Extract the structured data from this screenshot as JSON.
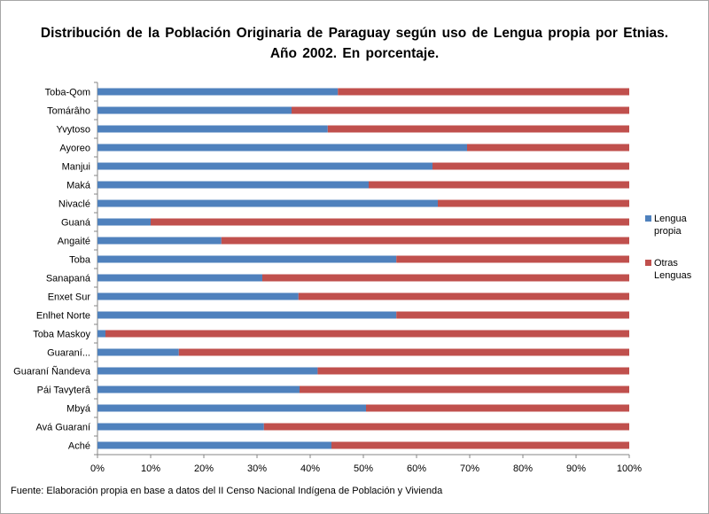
{
  "chart_data": {
    "type": "bar",
    "orientation": "horizontal",
    "stacked": "percent",
    "title": "Distribución de la Población Originaria de Paraguay según uso de Lengua propia por Etnias. Año 2002. En porcentaje.",
    "categories": [
      "Toba-Qom",
      "Tomárâho",
      "Yvytoso",
      "Ayoreo",
      "Manjui",
      "Maká",
      "Nivaclé",
      "Guaná",
      "Angaité",
      "Toba",
      "Sanapaná",
      "Enxet Sur",
      "Enlhet Norte",
      "Toba Maskoy",
      "Guaraní...",
      "Guaraní Ñandeva",
      "Pái Tavyterâ",
      "Mbyá",
      "Avá Guaraní",
      "Aché"
    ],
    "series": [
      {
        "name": "Lengua propia",
        "color": "#4f81bd",
        "values": [
          45.2,
          36.5,
          43.3,
          69.5,
          63.0,
          51.0,
          64.0,
          10.0,
          23.3,
          56.2,
          31.0,
          37.8,
          56.2,
          1.5,
          15.3,
          41.4,
          38.0,
          50.5,
          31.3,
          44.0
        ]
      },
      {
        "name": "Otras Lenguas",
        "color": "#c0504d",
        "values": [
          54.8,
          63.5,
          56.7,
          30.5,
          37.0,
          49.0,
          36.0,
          90.0,
          76.7,
          43.8,
          69.0,
          62.2,
          43.8,
          98.5,
          84.7,
          58.6,
          62.0,
          49.5,
          68.7,
          56.0
        ]
      }
    ],
    "x_ticks": [
      "0%",
      "10%",
      "20%",
      "30%",
      "40%",
      "50%",
      "60%",
      "70%",
      "80%",
      "90%",
      "100%"
    ],
    "xlim": [
      0,
      100
    ],
    "grid": false,
    "legend_position": "right"
  },
  "legend": {
    "lengua_line1": "Lengua",
    "lengua_line2": "propia",
    "otras_line1": "Otras",
    "otras_line2": "Lenguas"
  },
  "source": "Fuente: Elaboración propia en base a datos del II Censo Nacional Indígena de Población y Vivienda"
}
